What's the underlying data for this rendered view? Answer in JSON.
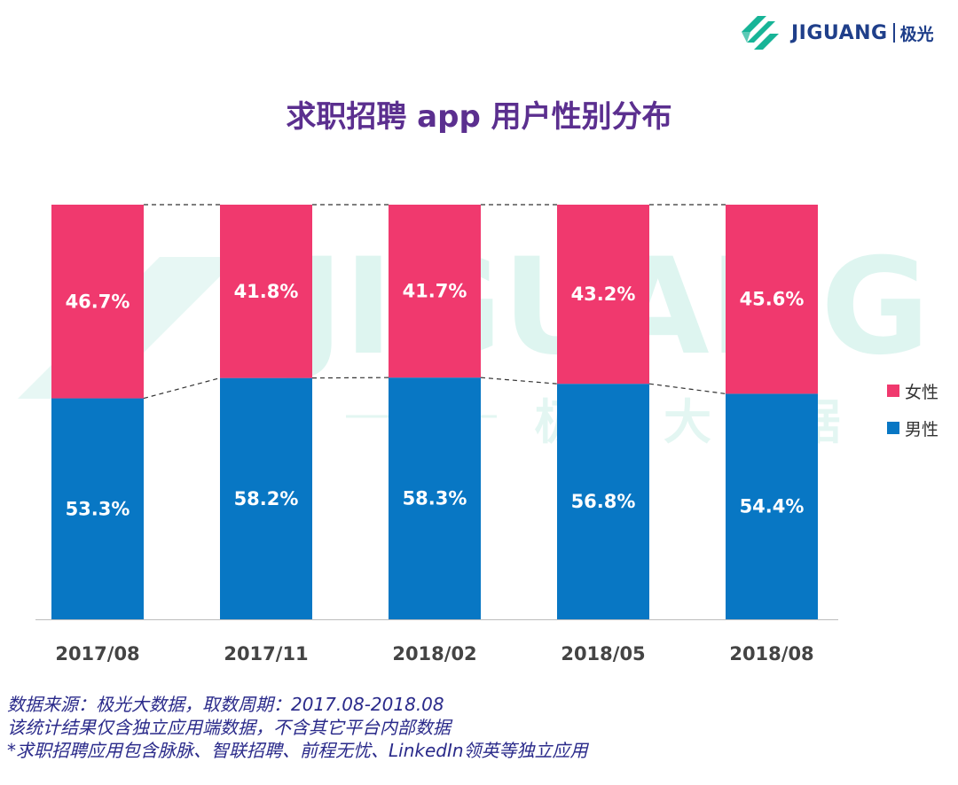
{
  "logo": {
    "brand": "JIGUANG",
    "brand_cn": "极光"
  },
  "watermark": {
    "text": "JIGUANG",
    "subtext": "极 光 大 数 据"
  },
  "colors": {
    "female": "#f0396e",
    "male": "#0877c4",
    "title": "#5b2f8f",
    "notes": "#2a2a8a",
    "brand": "#1f3f8a",
    "logo_green": "#17b497"
  },
  "chart_data": {
    "type": "bar",
    "stacked": true,
    "title": "求职招聘 app 用户性别分布",
    "categories": [
      "2017/08",
      "2017/11",
      "2018/02",
      "2018/05",
      "2018/08"
    ],
    "series": [
      {
        "name": "男性",
        "values": [
          53.3,
          58.2,
          58.3,
          56.8,
          54.4
        ],
        "labels": [
          "53.3%",
          "58.2%",
          "58.3%",
          "56.8%",
          "54.4%"
        ],
        "color": "#0877c4"
      },
      {
        "name": "女性",
        "values": [
          46.7,
          41.8,
          41.7,
          43.2,
          45.6
        ],
        "labels": [
          "46.7%",
          "41.8%",
          "41.7%",
          "43.2%",
          "45.6%"
        ],
        "color": "#f0396e"
      }
    ],
    "ylim": [
      0,
      100
    ],
    "grid": false,
    "legend": "right"
  },
  "notes": [
    "数据来源：极光大数据，取数周期：2017.08-2018.08",
    "该统计结果仅含独立应用端数据，不含其它平台内部数据",
    " *求职招聘应用包含脉脉、智联招聘、前程无忧、LinkedIn领英等独立应用"
  ]
}
